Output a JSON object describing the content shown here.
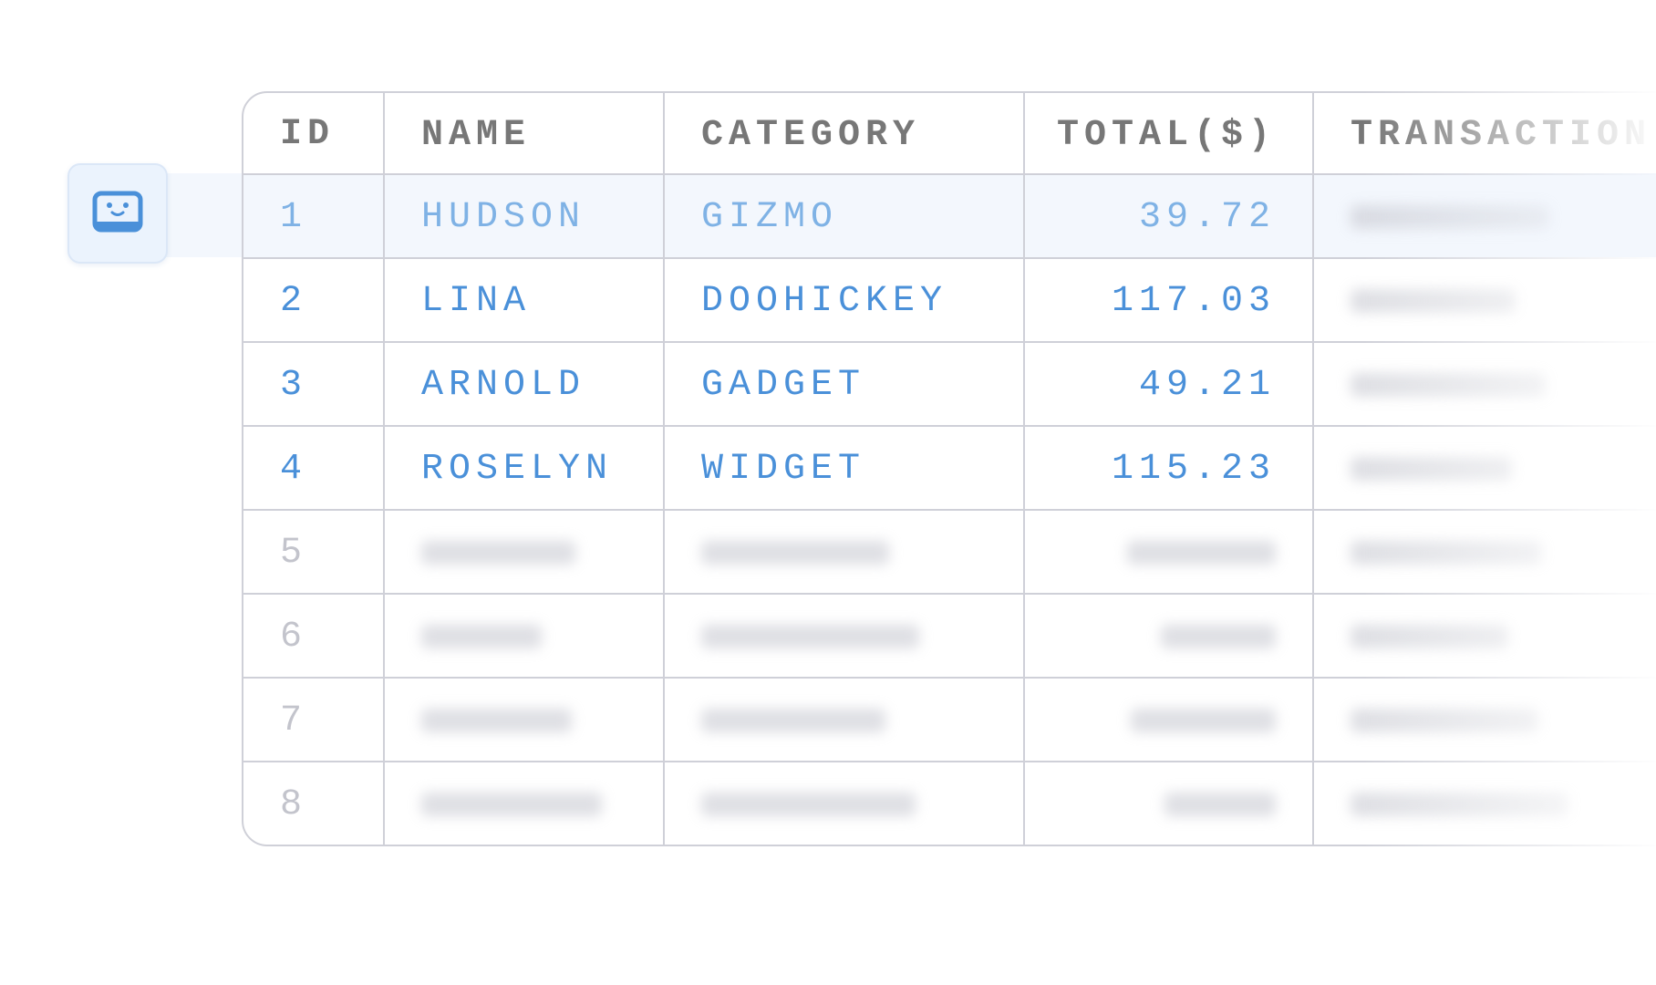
{
  "table": {
    "columns": [
      "ID",
      "NAME",
      "CATEGORY",
      "TOTAL($)",
      "TRANSACTION"
    ],
    "rows": [
      [
        "1",
        "HUDSON",
        "GIZMO",
        "39.72"
      ],
      [
        "2",
        "LINA",
        "DOOHICKEY",
        "117.03"
      ],
      [
        "3",
        "ARNOLD",
        "GADGET",
        "49.21"
      ],
      [
        "4",
        "ROSELYN",
        "WIDGET",
        "115.23"
      ],
      [
        "5"
      ],
      [
        "6"
      ],
      [
        "7"
      ],
      [
        "8"
      ]
    ]
  }
}
